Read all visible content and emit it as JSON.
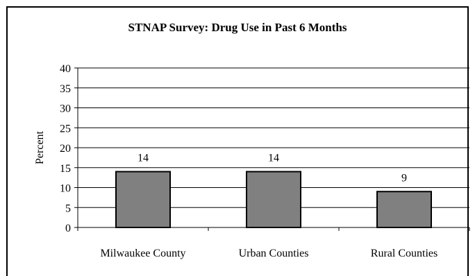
{
  "chart_data": {
    "type": "bar",
    "title": "STNAP Survey: Drug Use in Past 6 Months",
    "ylabel": "Percent",
    "xlabel": "",
    "categories": [
      "Milwaukee County",
      "Urban Counties",
      "Rural Counties"
    ],
    "values": [
      14,
      14,
      9
    ],
    "data_labels": [
      "14",
      "14",
      "9"
    ],
    "ylim": [
      0,
      40
    ],
    "yticks": [
      0,
      5,
      10,
      15,
      20,
      25,
      30,
      35,
      40
    ],
    "grid": true,
    "legend": "none",
    "colors": {
      "bar": "#808080",
      "bar_outline": "#000000",
      "grid": "#000000",
      "frame": "#000000"
    }
  }
}
